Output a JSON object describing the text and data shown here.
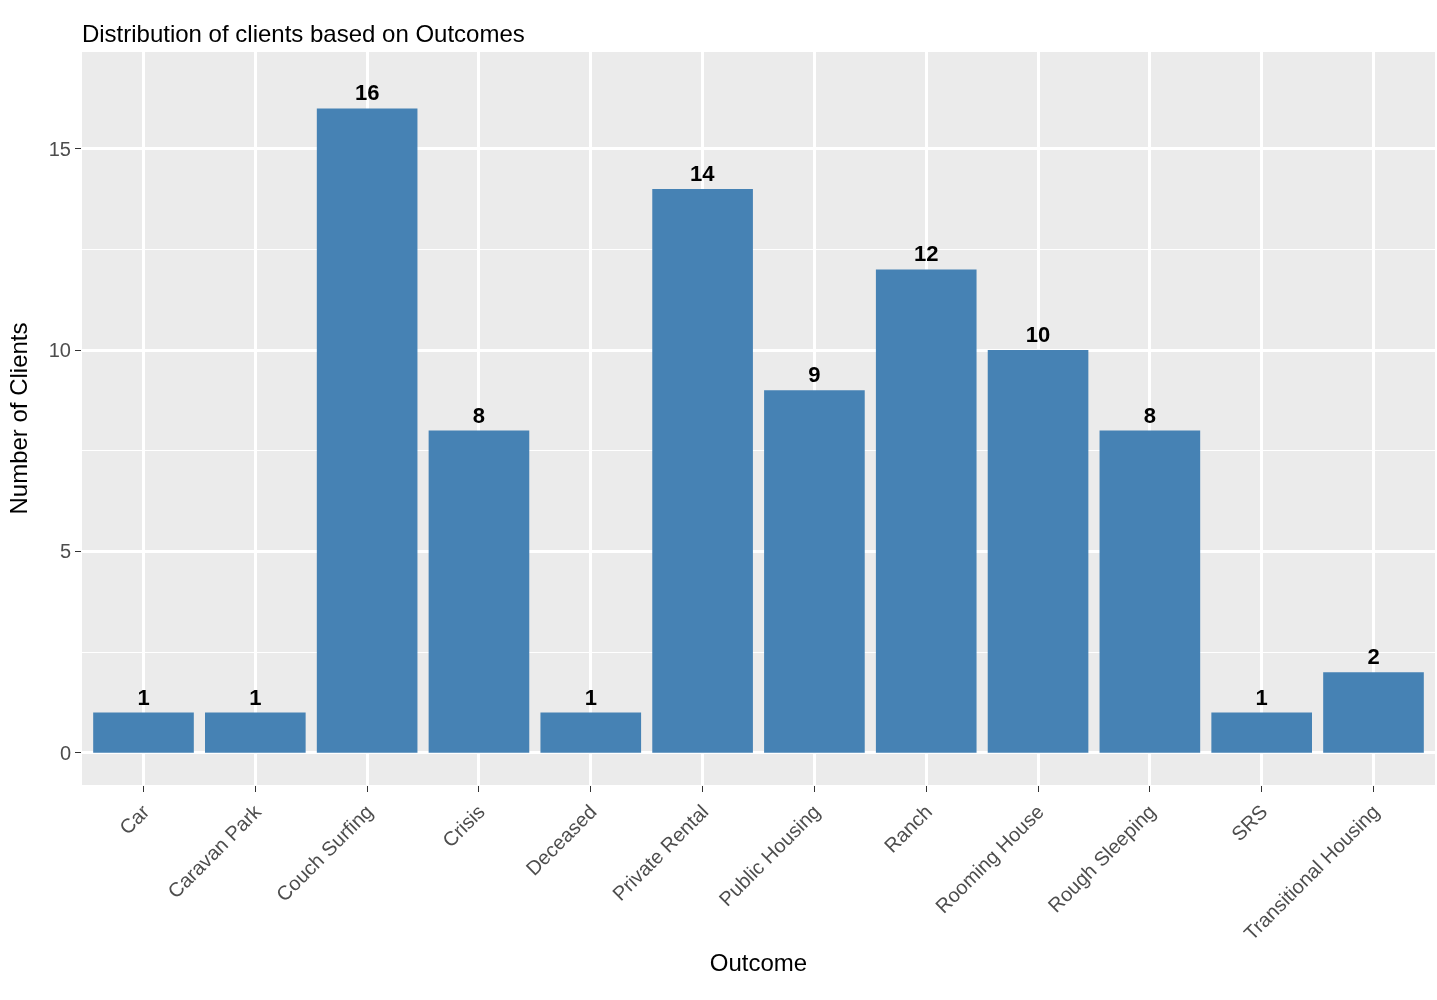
{
  "chart_data": {
    "type": "bar",
    "title": "Distribution of clients based on Outcomes",
    "xlabel": "Outcome",
    "ylabel": "Number of Clients",
    "categories": [
      "Car",
      "Caravan Park",
      "Couch Surfing",
      "Crisis",
      "Deceased",
      "Private Rental",
      "Public Housing",
      "Ranch",
      "Rooming House",
      "Rough Sleeping",
      "SRS",
      "Transitional Housing"
    ],
    "values": [
      1,
      1,
      16,
      8,
      1,
      14,
      9,
      12,
      10,
      8,
      1,
      2
    ],
    "color": "#4682b4",
    "data_labels": true,
    "ylim": [
      -0.8,
      17.4
    ],
    "yticks": [
      0,
      {
        "value": 2.5,
        "label": null
      },
      5,
      {
        "value": 7.5,
        "label": null
      },
      10,
      {
        "value": 12.5,
        "label": null
      },
      15
    ],
    "grid": true
  }
}
